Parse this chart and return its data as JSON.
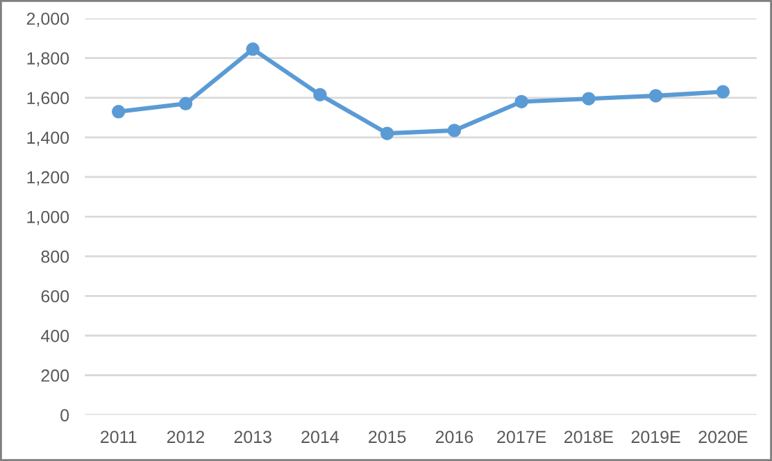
{
  "chart_data": {
    "type": "line",
    "categories": [
      "2011",
      "2012",
      "2013",
      "2014",
      "2015",
      "2016",
      "2017E",
      "2018E",
      "2019E",
      "2020E"
    ],
    "series": [
      {
        "color": "#5b9bd5",
        "values": [
          1530,
          1570,
          1845,
          1615,
          1420,
          1435,
          1580,
          1595,
          1610,
          1630
        ]
      }
    ],
    "ylim": [
      0,
      2000
    ],
    "yticks": [
      {
        "value": 0,
        "label": "0"
      },
      {
        "value": 200,
        "label": "200"
      },
      {
        "value": 400,
        "label": "400"
      },
      {
        "value": 600,
        "label": "600"
      },
      {
        "value": 800,
        "label": "800"
      },
      {
        "value": 1000,
        "label": "1,000"
      },
      {
        "value": 1200,
        "label": "1,200"
      },
      {
        "value": 1400,
        "label": "1,400"
      },
      {
        "value": 1600,
        "label": "1,600"
      },
      {
        "value": 1800,
        "label": "1,800"
      },
      {
        "value": 2000,
        "label": "2,000"
      }
    ],
    "grid": "y",
    "marker": "circle",
    "line_style": "solid"
  }
}
